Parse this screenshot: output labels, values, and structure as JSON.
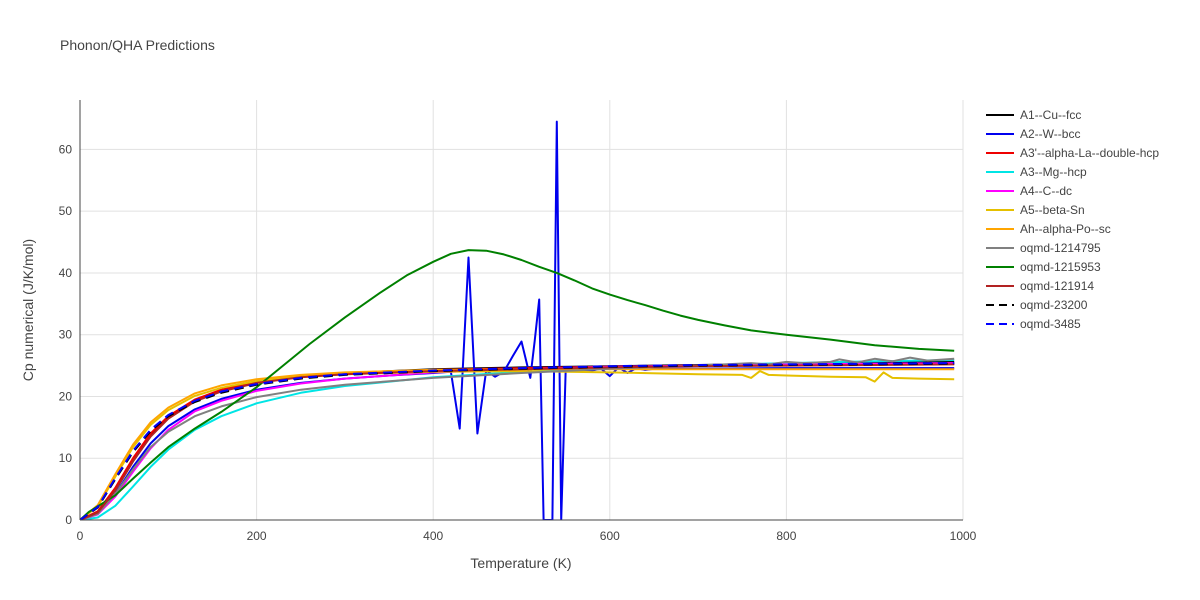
{
  "chart_data": {
    "type": "line",
    "title": "Phonon/QHA Predictions",
    "xlabel": "Temperature (K)",
    "ylabel": "Cp numerical (J/K/mol)",
    "xlim": [
      0,
      1000
    ],
    "ylim": [
      0,
      68
    ],
    "xticks": [
      0,
      200,
      400,
      600,
      800,
      1000
    ],
    "yticks": [
      0,
      10,
      20,
      30,
      40,
      50,
      60
    ],
    "grid": true,
    "legend_position": "right",
    "series": [
      {
        "name": "A1--Cu--fcc",
        "color": "#000000",
        "dash": "solid",
        "x": [
          0,
          20,
          40,
          60,
          80,
          100,
          130,
          160,
          200,
          250,
          300,
          400,
          500,
          600,
          700,
          800,
          900,
          990
        ],
        "y": [
          0,
          1.3,
          4.8,
          9.5,
          13.6,
          16.5,
          19.3,
          21.0,
          22.4,
          23.3,
          23.8,
          24.4,
          24.7,
          24.9,
          25.1,
          25.3,
          25.5,
          25.6
        ]
      },
      {
        "name": "A2--W--bcc",
        "color": "#0000ee",
        "dash": "solid",
        "x": [
          0,
          20,
          40,
          60,
          80,
          100,
          130,
          160,
          200,
          250,
          300,
          350,
          400,
          420,
          430,
          440,
          450,
          460,
          470,
          480,
          490,
          500,
          510,
          515,
          520,
          525,
          530,
          535,
          540,
          545,
          550,
          560,
          570,
          580,
          590,
          600,
          610,
          620,
          630,
          640,
          650,
          700,
          800,
          900,
          990
        ],
        "y": [
          0,
          1.0,
          4.2,
          8.6,
          12.4,
          15.2,
          17.9,
          19.6,
          21.1,
          22.2,
          22.9,
          23.4,
          23.8,
          24.0,
          14.8,
          42.5,
          14.0,
          24.2,
          23.2,
          24.0,
          26.5,
          28.9,
          23.0,
          29.0,
          35.7,
          0,
          0,
          0,
          64.5,
          0,
          24.3,
          24.2,
          24.3,
          24.2,
          24.5,
          23.3,
          24.7,
          23.8,
          24.6,
          24.3,
          24.5,
          24.5,
          24.6,
          24.6,
          24.6
        ]
      },
      {
        "name": "A3'--alpha-La--double-hcp",
        "color": "#ee0000",
        "dash": "solid",
        "x": [
          0,
          20,
          40,
          60,
          80,
          100,
          130,
          160,
          200,
          250,
          300,
          400,
          500,
          600,
          700,
          800,
          900,
          990
        ],
        "y": [
          0,
          1.4,
          5.2,
          10.0,
          14.0,
          16.8,
          19.5,
          21.1,
          22.4,
          23.3,
          23.8,
          24.3,
          24.6,
          24.8,
          25.0,
          25.1,
          25.2,
          25.3
        ]
      },
      {
        "name": "A3--Mg--hcp",
        "color": "#00e5e5",
        "dash": "solid",
        "x": [
          0,
          20,
          40,
          60,
          80,
          100,
          130,
          160,
          200,
          250,
          300,
          400,
          500,
          600,
          700,
          800,
          900,
          990
        ],
        "y": [
          0,
          0.4,
          2.3,
          5.4,
          8.6,
          11.4,
          14.6,
          16.8,
          18.9,
          20.6,
          21.7,
          23.1,
          24.0,
          24.6,
          25.0,
          25.4,
          25.7,
          25.9
        ]
      },
      {
        "name": "A4--C--dc",
        "color": "#ff00ff",
        "dash": "solid",
        "x": [
          0,
          20,
          40,
          60,
          80,
          100,
          130,
          160,
          200,
          250,
          300,
          400,
          500,
          600,
          700,
          800,
          900,
          990
        ],
        "y": [
          0,
          0.9,
          3.8,
          7.8,
          11.6,
          14.6,
          17.6,
          19.3,
          20.9,
          22.1,
          22.9,
          23.9,
          24.4,
          24.8,
          25.0,
          25.2,
          25.3,
          25.4
        ]
      },
      {
        "name": "A5--beta-Sn",
        "color": "#e5c000",
        "dash": "solid",
        "x": [
          0,
          20,
          40,
          60,
          80,
          100,
          130,
          160,
          200,
          250,
          300,
          400,
          500,
          600,
          700,
          750,
          760,
          770,
          780,
          800,
          850,
          890,
          900,
          910,
          920,
          950,
          990
        ],
        "y": [
          0,
          2.2,
          7.0,
          11.8,
          15.4,
          17.8,
          20.1,
          21.4,
          22.5,
          23.2,
          23.6,
          24.0,
          24.1,
          23.9,
          23.6,
          23.5,
          23.0,
          24.1,
          23.5,
          23.4,
          23.2,
          23.1,
          22.4,
          23.9,
          23.0,
          22.9,
          22.8
        ]
      },
      {
        "name": "Ah--alpha-Po--sc",
        "color": "#ffa500",
        "dash": "solid",
        "x": [
          0,
          20,
          40,
          60,
          80,
          100,
          130,
          160,
          200,
          250,
          300,
          400,
          500,
          600,
          700,
          800,
          900,
          990
        ],
        "y": [
          0,
          2.4,
          7.4,
          12.2,
          15.8,
          18.2,
          20.5,
          21.8,
          22.8,
          23.5,
          23.9,
          24.3,
          24.4,
          24.4,
          24.4,
          24.4,
          24.4,
          24.4
        ]
      },
      {
        "name": "oqmd-1214795",
        "color": "#808080",
        "dash": "solid",
        "x": [
          0,
          20,
          40,
          60,
          80,
          100,
          130,
          160,
          200,
          250,
          300,
          400,
          500,
          600,
          700,
          760,
          780,
          800,
          820,
          850,
          860,
          880,
          900,
          920,
          940,
          960,
          990
        ],
        "y": [
          0,
          1.0,
          4.2,
          8.2,
          11.8,
          14.3,
          16.8,
          18.4,
          19.9,
          21.1,
          21.9,
          23.0,
          23.8,
          24.5,
          25.0,
          25.4,
          25.2,
          25.6,
          25.4,
          25.6,
          26.0,
          25.5,
          26.1,
          25.7,
          26.3,
          25.8,
          26.1
        ]
      },
      {
        "name": "oqmd-1215953",
        "color": "#008000",
        "dash": "solid",
        "x": [
          0,
          10,
          20,
          40,
          60,
          80,
          100,
          130,
          160,
          200,
          230,
          260,
          300,
          340,
          370,
          400,
          420,
          440,
          460,
          480,
          500,
          520,
          540,
          560,
          580,
          600,
          620,
          640,
          660,
          680,
          700,
          730,
          760,
          800,
          850,
          900,
          950,
          990
        ],
        "y": [
          0,
          1.3,
          2.2,
          4.0,
          6.7,
          9.3,
          11.8,
          14.8,
          17.5,
          21.5,
          25.0,
          28.5,
          32.8,
          36.8,
          39.6,
          41.8,
          43.1,
          43.7,
          43.6,
          43.0,
          42.1,
          41.0,
          40.0,
          38.8,
          37.5,
          36.5,
          35.6,
          34.8,
          33.9,
          33.1,
          32.4,
          31.5,
          30.7,
          30.0,
          29.2,
          28.3,
          27.7,
          27.4
        ]
      },
      {
        "name": "oqmd-121914",
        "color": "#b22222",
        "dash": "solid",
        "x": [
          0,
          20,
          40,
          60,
          80,
          100,
          130,
          160,
          200,
          250,
          300,
          400,
          500,
          600,
          700,
          800,
          900,
          990
        ],
        "y": [
          0,
          1.2,
          4.8,
          9.5,
          13.5,
          16.4,
          19.2,
          20.8,
          22.2,
          23.1,
          23.6,
          24.1,
          24.4,
          24.7,
          24.9,
          25.0,
          25.1,
          25.2
        ]
      },
      {
        "name": "oqmd-23200",
        "color": "#000000",
        "dash": "dash",
        "x": [
          0,
          20,
          40,
          60,
          80,
          100,
          130,
          160,
          200,
          250,
          300,
          400,
          500,
          600,
          700,
          800,
          900,
          990
        ],
        "y": [
          0,
          2.0,
          6.6,
          11.0,
          14.4,
          16.8,
          19.1,
          20.6,
          21.9,
          22.9,
          23.5,
          24.1,
          24.5,
          24.8,
          25.0,
          25.1,
          25.2,
          25.3
        ]
      },
      {
        "name": "oqmd-3485",
        "color": "#0000ff",
        "dash": "dash",
        "x": [
          0,
          20,
          40,
          60,
          80,
          100,
          130,
          160,
          200,
          250,
          300,
          400,
          500,
          600,
          700,
          800,
          900,
          990
        ],
        "y": [
          0,
          2.1,
          6.8,
          11.2,
          14.6,
          17.0,
          19.3,
          20.8,
          22.0,
          23.0,
          23.6,
          24.2,
          24.6,
          24.9,
          25.1,
          25.2,
          25.3,
          25.4
        ]
      }
    ]
  }
}
